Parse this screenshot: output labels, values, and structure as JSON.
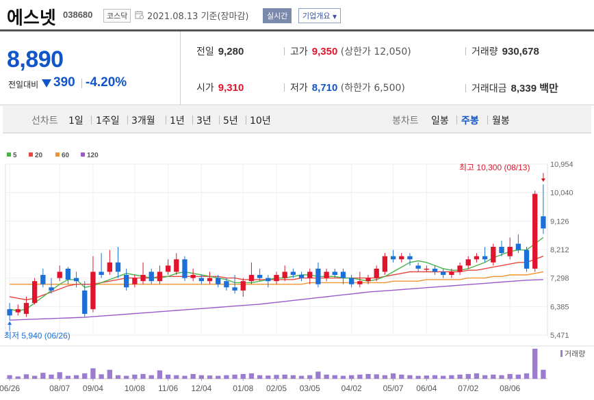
{
  "header": {
    "name": "에스넷",
    "code": "038680",
    "market": "코스닥",
    "date_text": "2021.08.13 기준(장마감)",
    "realtime_label": "실시간",
    "overview_label": "기업개요"
  },
  "quote": {
    "price": "8,890",
    "change_label": "전일대비",
    "change": "390",
    "change_rate": "-4.20%",
    "prev_close_label": "전일",
    "prev_close": "9,280",
    "open_label": "시가",
    "open": "9,310",
    "high_label": "고가",
    "high": "9,350",
    "upper_limit": "(상한가 12,050)",
    "low_label": "저가",
    "low": "8,710",
    "lower_limit": "(하한가 6,500)",
    "volume_label": "거래량",
    "volume": "930,678",
    "amount_label": "거래대금",
    "amount": "8,339 백만"
  },
  "period_bar": {
    "line_label": "선차트",
    "line_periods": [
      "1일",
      "1주일",
      "3개월",
      "1년",
      "3년",
      "5년",
      "10년"
    ],
    "candle_label": "봉차트",
    "candle_periods": [
      "일봉",
      "주봉",
      "월봉"
    ],
    "active_candle": "주봉"
  },
  "colors": {
    "up": "#e0142c",
    "down": "#1b6fd6",
    "ma5": "#46b446",
    "ma20": "#e8473f",
    "ma60": "#f0932e",
    "ma120": "#9b59c9"
  },
  "chart_data": {
    "type": "candlestick",
    "interval": "weekly",
    "legend": [
      "5",
      "20",
      "60",
      "120"
    ],
    "y_ticks": [
      10954,
      10040,
      9126,
      8212,
      7298,
      6385,
      5471
    ],
    "ylim": [
      5471,
      10954
    ],
    "x_ticks": [
      "06/26",
      "08/07",
      "09/04",
      "10/08",
      "11/06",
      "12/04",
      "01/08",
      "02/05",
      "03/05",
      "04/02",
      "05/07",
      "06/04",
      "07/02",
      "08/06"
    ],
    "high_annotation": "최고 10,300 (08/13)",
    "low_annotation": "최저 5,940 (06/26)",
    "volume_label": "거래량",
    "candles": [
      {
        "o": 6300,
        "c": 6100,
        "h": 6500,
        "l": 5940
      },
      {
        "o": 6200,
        "c": 6300,
        "h": 6450,
        "l": 6100
      },
      {
        "o": 6150,
        "c": 6500,
        "h": 6700,
        "l": 6050
      },
      {
        "o": 6500,
        "c": 7200,
        "h": 7300,
        "l": 6450
      },
      {
        "o": 7400,
        "c": 7100,
        "h": 7600,
        "l": 7000
      },
      {
        "o": 7000,
        "c": 6900,
        "h": 7300,
        "l": 6800
      },
      {
        "o": 7300,
        "c": 7500,
        "h": 7700,
        "l": 7200
      },
      {
        "o": 7600,
        "c": 7250,
        "h": 7650,
        "l": 7100
      },
      {
        "o": 7300,
        "c": 7200,
        "h": 7500,
        "l": 7000
      },
      {
        "o": 6900,
        "c": 6150,
        "h": 7200,
        "l": 6050
      },
      {
        "o": 6300,
        "c": 7500,
        "h": 8000,
        "l": 6200
      },
      {
        "o": 7500,
        "c": 7400,
        "h": 8100,
        "l": 7300
      },
      {
        "o": 7500,
        "c": 7800,
        "h": 8200,
        "l": 7400
      },
      {
        "o": 7800,
        "c": 7500,
        "h": 8300,
        "l": 7300
      },
      {
        "o": 7400,
        "c": 7000,
        "h": 7600,
        "l": 6900
      },
      {
        "o": 7100,
        "c": 7300,
        "h": 7400,
        "l": 7000
      },
      {
        "o": 7200,
        "c": 7400,
        "h": 7800,
        "l": 7100
      },
      {
        "o": 7500,
        "c": 7200,
        "h": 7600,
        "l": 7100
      },
      {
        "o": 7200,
        "c": 7500,
        "h": 7700,
        "l": 7100
      },
      {
        "o": 7500,
        "c": 7700,
        "h": 7900,
        "l": 7400
      },
      {
        "o": 7500,
        "c": 7900,
        "h": 8100,
        "l": 7400
      },
      {
        "o": 7900,
        "c": 7300,
        "h": 8000,
        "l": 7200
      },
      {
        "o": 7300,
        "c": 7400,
        "h": 7600,
        "l": 7200
      },
      {
        "o": 7300,
        "c": 7200,
        "h": 7400,
        "l": 7100
      },
      {
        "o": 7200,
        "c": 7300,
        "h": 7500,
        "l": 7100
      },
      {
        "o": 7300,
        "c": 7100,
        "h": 7400,
        "l": 7000
      },
      {
        "o": 7200,
        "c": 7000,
        "h": 7300,
        "l": 6900
      },
      {
        "o": 7000,
        "c": 6900,
        "h": 7400,
        "l": 6800
      },
      {
        "o": 6900,
        "c": 7200,
        "h": 7300,
        "l": 6700
      },
      {
        "o": 7200,
        "c": 7400,
        "h": 7800,
        "l": 7100
      },
      {
        "o": 7400,
        "c": 7300,
        "h": 7600,
        "l": 7200
      },
      {
        "o": 7300,
        "c": 7200,
        "h": 7400,
        "l": 7000
      },
      {
        "o": 7200,
        "c": 7400,
        "h": 7500,
        "l": 7100
      },
      {
        "o": 7300,
        "c": 7500,
        "h": 7700,
        "l": 7200
      },
      {
        "o": 7500,
        "c": 7400,
        "h": 7600,
        "l": 7300
      },
      {
        "o": 7400,
        "c": 7300,
        "h": 7500,
        "l": 7200
      },
      {
        "o": 7300,
        "c": 7500,
        "h": 7600,
        "l": 7100
      },
      {
        "o": 7600,
        "c": 7100,
        "h": 7800,
        "l": 7000
      },
      {
        "o": 7300,
        "c": 7500,
        "h": 7600,
        "l": 7200
      },
      {
        "o": 7500,
        "c": 7400,
        "h": 7600,
        "l": 7300
      },
      {
        "o": 7500,
        "c": 7300,
        "h": 7600,
        "l": 7100
      },
      {
        "o": 7300,
        "c": 7100,
        "h": 7400,
        "l": 7000
      },
      {
        "o": 7100,
        "c": 7200,
        "h": 7500,
        "l": 7000
      },
      {
        "o": 7200,
        "c": 7300,
        "h": 7400,
        "l": 7100
      },
      {
        "o": 7300,
        "c": 7600,
        "h": 7700,
        "l": 7200
      },
      {
        "o": 7500,
        "c": 8000,
        "h": 8100,
        "l": 7400
      },
      {
        "o": 8000,
        "c": 7900,
        "h": 8200,
        "l": 7800
      },
      {
        "o": 7900,
        "c": 8000,
        "h": 8100,
        "l": 7800
      },
      {
        "o": 8000,
        "c": 7900,
        "h": 8100,
        "l": 7700
      },
      {
        "o": 7700,
        "c": 7600,
        "h": 7800,
        "l": 7500
      },
      {
        "o": 7600,
        "c": 7600,
        "h": 7700,
        "l": 7500
      },
      {
        "o": 7600,
        "c": 7500,
        "h": 7700,
        "l": 7400
      },
      {
        "o": 7500,
        "c": 7400,
        "h": 7600,
        "l": 7300
      },
      {
        "o": 7400,
        "c": 7500,
        "h": 7600,
        "l": 7300
      },
      {
        "o": 7500,
        "c": 7700,
        "h": 7800,
        "l": 7400
      },
      {
        "o": 7700,
        "c": 7900,
        "h": 8000,
        "l": 7600
      },
      {
        "o": 7900,
        "c": 8000,
        "h": 8100,
        "l": 7800
      },
      {
        "o": 8000,
        "c": 7900,
        "h": 8300,
        "l": 7800
      },
      {
        "o": 7800,
        "c": 8300,
        "h": 8400,
        "l": 7700
      },
      {
        "o": 8300,
        "c": 8100,
        "h": 8500,
        "l": 8000
      },
      {
        "o": 8000,
        "c": 8300,
        "h": 8600,
        "l": 7900
      },
      {
        "o": 8400,
        "c": 8200,
        "h": 8700,
        "l": 8100
      },
      {
        "o": 8200,
        "c": 7600,
        "h": 8300,
        "l": 7500
      },
      {
        "o": 7600,
        "c": 10000,
        "h": 10100,
        "l": 7500
      },
      {
        "o": 9280,
        "c": 8890,
        "h": 10300,
        "l": 8710
      }
    ],
    "ma5": [
      6300,
      6250,
      6300,
      6500,
      6700,
      6900,
      7100,
      7250,
      7250,
      7000,
      7050,
      7150,
      7250,
      7350,
      7450,
      7400,
      7350,
      7300,
      7300,
      7350,
      7450,
      7500,
      7450,
      7400,
      7350,
      7300,
      7250,
      7150,
      7150,
      7150,
      7200,
      7250,
      7300,
      7300,
      7350,
      7400,
      7400,
      7350,
      7350,
      7350,
      7300,
      7300,
      7250,
      7200,
      7250,
      7350,
      7500,
      7650,
      7800,
      7850,
      7800,
      7700,
      7600,
      7550,
      7550,
      7600,
      7700,
      7800,
      7950,
      8050,
      8150,
      8200,
      8200,
      8400,
      8600
    ],
    "ma20": [
      6700,
      6650,
      6600,
      6650,
      6750,
      6850,
      6950,
      7050,
      7100,
      7100,
      7100,
      7150,
      7200,
      7250,
      7300,
      7300,
      7300,
      7300,
      7350,
      7350,
      7350,
      7350,
      7350,
      7350,
      7350,
      7350,
      7300,
      7300,
      7250,
      7250,
      7250,
      7250,
      7250,
      7250,
      7250,
      7300,
      7300,
      7300,
      7300,
      7300,
      7300,
      7300,
      7300,
      7300,
      7300,
      7350,
      7400,
      7450,
      7500,
      7500,
      7500,
      7500,
      7500,
      7500,
      7500,
      7550,
      7550,
      7600,
      7650,
      7700,
      7750,
      7800,
      7800,
      7900,
      8000
    ],
    "ma60": [
      7100,
      7100,
      7100,
      7100,
      7100,
      7100,
      7100,
      7100,
      7100,
      7100,
      7100,
      7100,
      7100,
      7100,
      7100,
      7100,
      7100,
      7100,
      7100,
      7100,
      7100,
      7100,
      7100,
      7100,
      7100,
      7100,
      7100,
      7100,
      7100,
      7100,
      7100,
      7100,
      7100,
      7100,
      7100,
      7100,
      7150,
      7150,
      7150,
      7150,
      7150,
      7150,
      7150,
      7150,
      7150,
      7150,
      7200,
      7200,
      7200,
      7200,
      7250,
      7250,
      7250,
      7250,
      7250,
      7300,
      7300,
      7300,
      7350,
      7350,
      7400,
      7400,
      7400,
      7450,
      7500
    ],
    "ma120": [
      5950,
      5960,
      5970,
      5980,
      5990,
      6000,
      6010,
      6020,
      6030,
      6040,
      6060,
      6080,
      6100,
      6120,
      6140,
      6160,
      6180,
      6200,
      6220,
      6240,
      6260,
      6280,
      6300,
      6320,
      6340,
      6360,
      6380,
      6400,
      6420,
      6440,
      6460,
      6490,
      6520,
      6550,
      6580,
      6610,
      6640,
      6670,
      6700,
      6730,
      6760,
      6790,
      6820,
      6850,
      6870,
      6890,
      6910,
      6930,
      6950,
      6970,
      6990,
      7010,
      7030,
      7050,
      7070,
      7090,
      7110,
      7130,
      7150,
      7170,
      7190,
      7210,
      7230,
      7240,
      7250
    ],
    "volumes": [
      12,
      8,
      15,
      10,
      20,
      14,
      22,
      10,
      12,
      18,
      35,
      15,
      30,
      12,
      10,
      14,
      16,
      12,
      28,
      14,
      12,
      10,
      16,
      12,
      11,
      10,
      12,
      14,
      16,
      18,
      12,
      11,
      13,
      14,
      12,
      10,
      12,
      24,
      14,
      12,
      10,
      12,
      14,
      16,
      15,
      12,
      18,
      14,
      12,
      10,
      11,
      12,
      10,
      12,
      14,
      16,
      18,
      12,
      14,
      12,
      16,
      14,
      18,
      100,
      30
    ]
  }
}
